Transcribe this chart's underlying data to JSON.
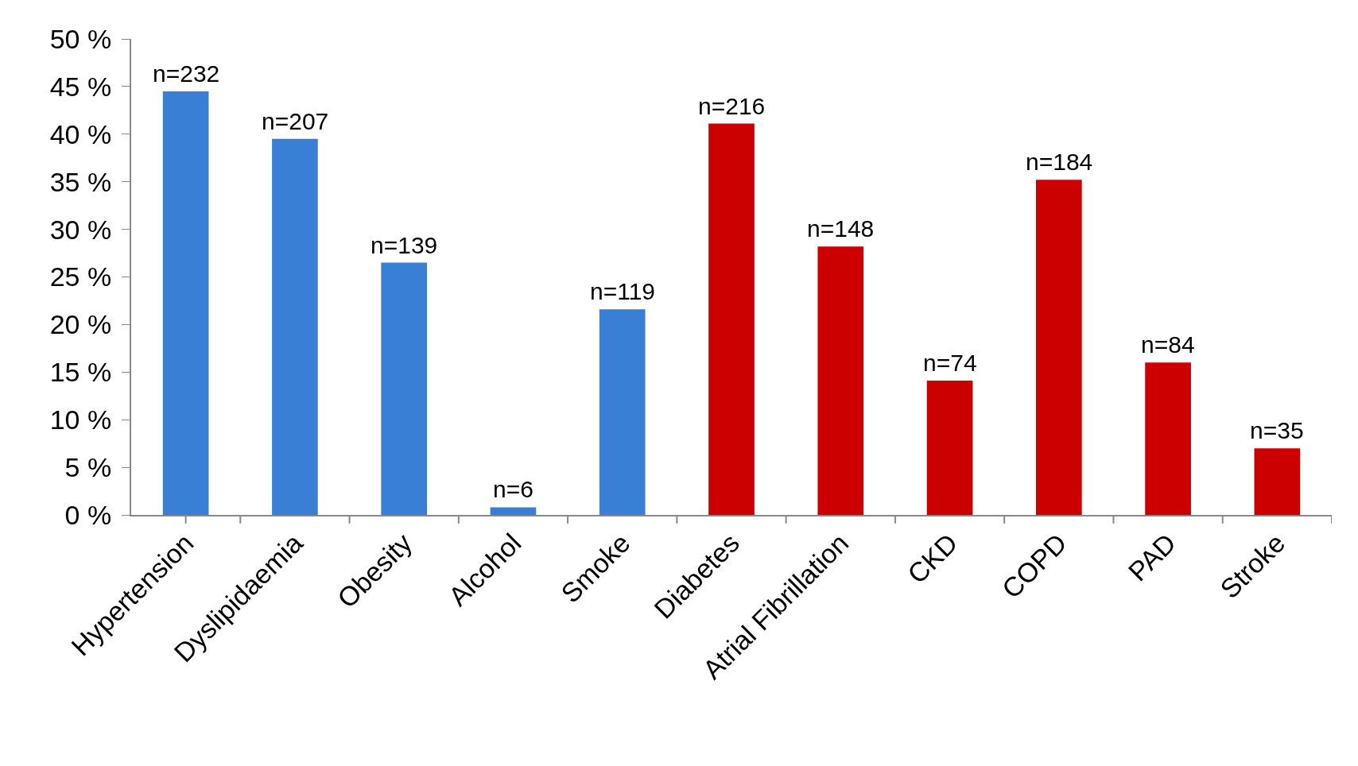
{
  "chart_data": {
    "type": "bar",
    "categories": [
      "Hypertension",
      "Dyslipidaemia",
      "Obesity",
      "Alcohol",
      "Smoke",
      "Diabetes",
      "Atrial Fibrillation",
      "CKD",
      "COPD",
      "PAD",
      "Stroke"
    ],
    "values": [
      44.5,
      39.5,
      26.5,
      0.8,
      21.6,
      41.1,
      28.2,
      14.1,
      35.2,
      16,
      7
    ],
    "colors": [
      "#3a7fd6",
      "#3a7fd6",
      "#3a7fd6",
      "#3a7fd6",
      "#3a7fd6",
      "#cc0000",
      "#cc0000",
      "#cc0000",
      "#cc0000",
      "#cc0000",
      "#cc0000"
    ],
    "annotations": [
      {
        "text": "n=232",
        "x": "Hypertension",
        "y": 44.5
      },
      {
        "text": "n=207",
        "x": "Dyslipidaemia",
        "y": 39.5
      },
      {
        "text": "n=139",
        "x": "Obesity",
        "y": 26.5
      },
      {
        "text": "n=6",
        "x": "Alcohol",
        "y": 0.8
      },
      {
        "text": "n=119",
        "x": "Smoke",
        "y": 21.6
      },
      {
        "text": "n=216",
        "x": "Diabetes",
        "y": 41.1
      },
      {
        "text": "n=148",
        "x": "Atrial Fibrillation",
        "y": 28.2
      },
      {
        "text": "n=74",
        "x": "CKD",
        "y": 14.1
      },
      {
        "text": "n=184",
        "x": "COPD",
        "y": 35.2
      },
      {
        "text": "n=84",
        "x": "PAD",
        "y": 16
      },
      {
        "text": "n=35",
        "x": "Stroke",
        "y": 7
      }
    ],
    "ylim": [
      0,
      50
    ],
    "yticks": [
      {
        "value": 0,
        "label": "0 %"
      },
      {
        "value": 5,
        "label": "5 %"
      },
      {
        "value": 10,
        "label": "10 %"
      },
      {
        "value": 15,
        "label": "15 %"
      },
      {
        "value": 20,
        "label": "20 %"
      },
      {
        "value": 25,
        "label": "25 %"
      },
      {
        "value": 30,
        "label": "30 %"
      },
      {
        "value": 35,
        "label": "35 %"
      },
      {
        "value": 40,
        "label": "40 %"
      },
      {
        "value": 45,
        "label": "45 %"
      },
      {
        "value": 50,
        "label": "50 %"
      }
    ],
    "grid": false,
    "legend": false
  }
}
